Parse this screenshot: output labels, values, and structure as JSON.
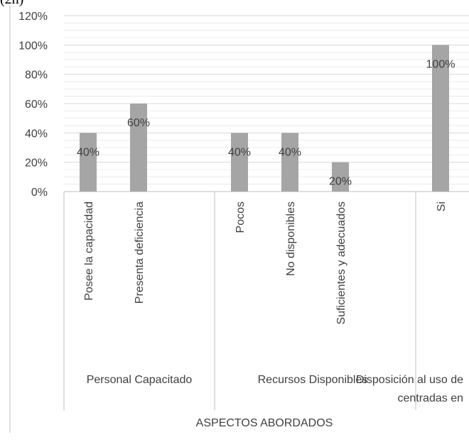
{
  "top_fragment": "(2h)",
  "chart_data": {
    "type": "bar",
    "title": "",
    "ylabel": "",
    "xlabel": "ASPECTOS ABORDADOS",
    "ylim": [
      0,
      1.2
    ],
    "y_ticks": [
      "0%",
      "20%",
      "40%",
      "60%",
      "80%",
      "100%",
      "120%"
    ],
    "groups": [
      {
        "label": "Personal Capacitado",
        "categories": [
          "Posee la capacidad",
          "Presenta deficiencia"
        ]
      },
      {
        "label": "Recursos Disponibles",
        "categories": [
          "Pocos",
          "No disponibles",
          "Suficientes y adecuados"
        ]
      },
      {
        "label": "Disposición al uso de",
        "label_line2": "centradas en",
        "categories": [
          "Si"
        ]
      }
    ],
    "series": [
      {
        "values": [
          0.4,
          0.6,
          0.4,
          0.4,
          0.2,
          1.0
        ]
      }
    ],
    "value_labels": [
      "40%",
      "60%",
      "40%",
      "40%",
      "20%",
      "100%"
    ],
    "grid": true,
    "legend": "none",
    "colors": {
      "bar": "#a5a5a5",
      "grid": "#d9d9d9",
      "axis": "#bfbfbf",
      "text": "#404040"
    }
  }
}
